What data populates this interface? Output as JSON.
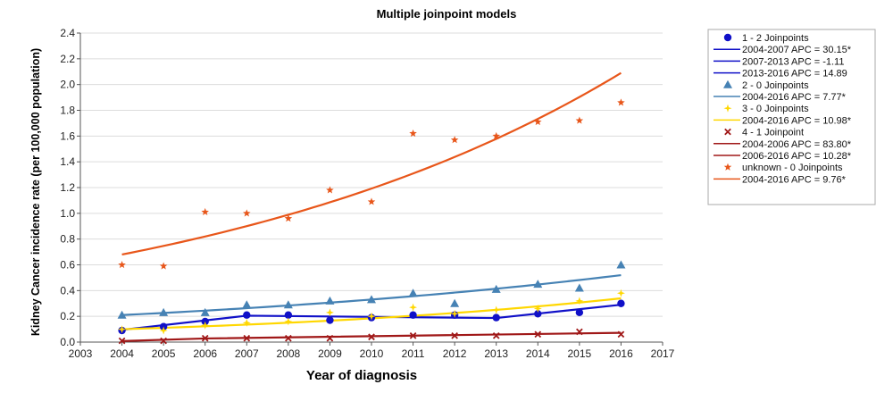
{
  "chart_data": {
    "type": "line",
    "title": "Multiple joinpoint models",
    "xlabel": "Year of diagnosis",
    "ylabel": "Kidney Cancer incidence rate (per 100,000 population)",
    "xlim": [
      2003,
      2017
    ],
    "ylim": [
      0,
      2.4
    ],
    "x_ticks": [
      2003,
      2004,
      2005,
      2006,
      2007,
      2008,
      2009,
      2010,
      2011,
      2012,
      2013,
      2014,
      2015,
      2016,
      2017
    ],
    "y_ticks": [
      0.0,
      0.2,
      0.4,
      0.6,
      0.8,
      1.0,
      1.2,
      1.4,
      1.6,
      1.8,
      2.0,
      2.2,
      2.4
    ],
    "y_tick_labels": [
      "0.0",
      "0.2",
      "0.4",
      "0.6",
      "0.8",
      "1.0",
      "1.2",
      "1.4",
      "1.6",
      "1.8",
      "2.0",
      "2.2",
      "2.4"
    ],
    "grid": "horizontal",
    "legend_position": "right",
    "series": [
      {
        "name": "1 - 2 Joinpoints",
        "color": "#1010c8",
        "marker": "circle",
        "x": [
          2004,
          2005,
          2006,
          2007,
          2008,
          2009,
          2010,
          2011,
          2012,
          2013,
          2014,
          2015,
          2016
        ],
        "observed": [
          0.09,
          0.12,
          0.16,
          0.21,
          0.21,
          0.17,
          0.19,
          0.21,
          0.21,
          0.19,
          0.22,
          0.23,
          0.3
        ],
        "fit_x": [
          2004,
          2007,
          2013,
          2016
        ],
        "fit_y": [
          0.095,
          0.205,
          0.187,
          0.29
        ],
        "fit_labels": [
          "2004-2007 APC  = 30.15*",
          "2007-2013 APC  = -1.11",
          "2013-2016 APC  = 14.89"
        ]
      },
      {
        "name": "2 - 0 Joinpoints",
        "color": "#4682b4",
        "marker": "triangle",
        "x": [
          2004,
          2005,
          2006,
          2007,
          2008,
          2009,
          2010,
          2011,
          2012,
          2013,
          2014,
          2015,
          2016
        ],
        "observed": [
          0.21,
          0.23,
          0.23,
          0.29,
          0.29,
          0.32,
          0.33,
          0.38,
          0.3,
          0.41,
          0.45,
          0.42,
          0.6
        ],
        "fit_x": [
          2004,
          2016
        ],
        "fit_y": [
          0.21,
          0.52
        ],
        "fit_growth": "exponential",
        "fit_labels": [
          "2004-2016 APC  = 7.77*"
        ]
      },
      {
        "name": "3 - 0 Joinpoints",
        "color": "#ffd700",
        "marker": "diamond",
        "x": [
          2004,
          2005,
          2006,
          2007,
          2008,
          2009,
          2010,
          2011,
          2012,
          2013,
          2014,
          2015,
          2016
        ],
        "observed": [
          0.1,
          0.09,
          0.13,
          0.15,
          0.16,
          0.23,
          0.2,
          0.27,
          0.22,
          0.25,
          0.26,
          0.32,
          0.38
        ],
        "fit_x": [
          2004,
          2016
        ],
        "fit_y": [
          0.1,
          0.34
        ],
        "fit_growth": "exponential",
        "fit_labels": [
          "2004-2016 APC  = 10.98*"
        ]
      },
      {
        "name": "4 - 1 Joinpoint",
        "color": "#a01818",
        "marker": "x",
        "x": [
          2004,
          2005,
          2006,
          2007,
          2008,
          2009,
          2010,
          2011,
          2012,
          2013,
          2014,
          2015,
          2016
        ],
        "observed": [
          0.01,
          0.01,
          0.03,
          0.03,
          0.03,
          0.03,
          0.04,
          0.05,
          0.05,
          0.05,
          0.06,
          0.08,
          0.06
        ],
        "fit_x": [
          2004,
          2006,
          2016
        ],
        "fit_y": [
          0.008,
          0.028,
          0.072
        ],
        "fit_labels": [
          "2004-2006 APC  = 83.80*",
          "2006-2016 APC  = 10.28*"
        ]
      },
      {
        "name": "unknown - 0 Joinpoints",
        "color": "#e8561a",
        "marker": "star",
        "x": [
          2004,
          2005,
          2006,
          2007,
          2008,
          2009,
          2010,
          2011,
          2012,
          2013,
          2014,
          2015,
          2016
        ],
        "observed": [
          0.6,
          0.59,
          1.01,
          1.0,
          0.96,
          1.18,
          1.09,
          1.62,
          1.57,
          1.6,
          1.71,
          1.72,
          1.86
        ],
        "fit_x": [
          2004,
          2016
        ],
        "fit_y": [
          0.68,
          2.09
        ],
        "fit_growth": "exponential",
        "fit_labels": [
          "2004-2016 APC  = 9.76*"
        ]
      }
    ]
  }
}
